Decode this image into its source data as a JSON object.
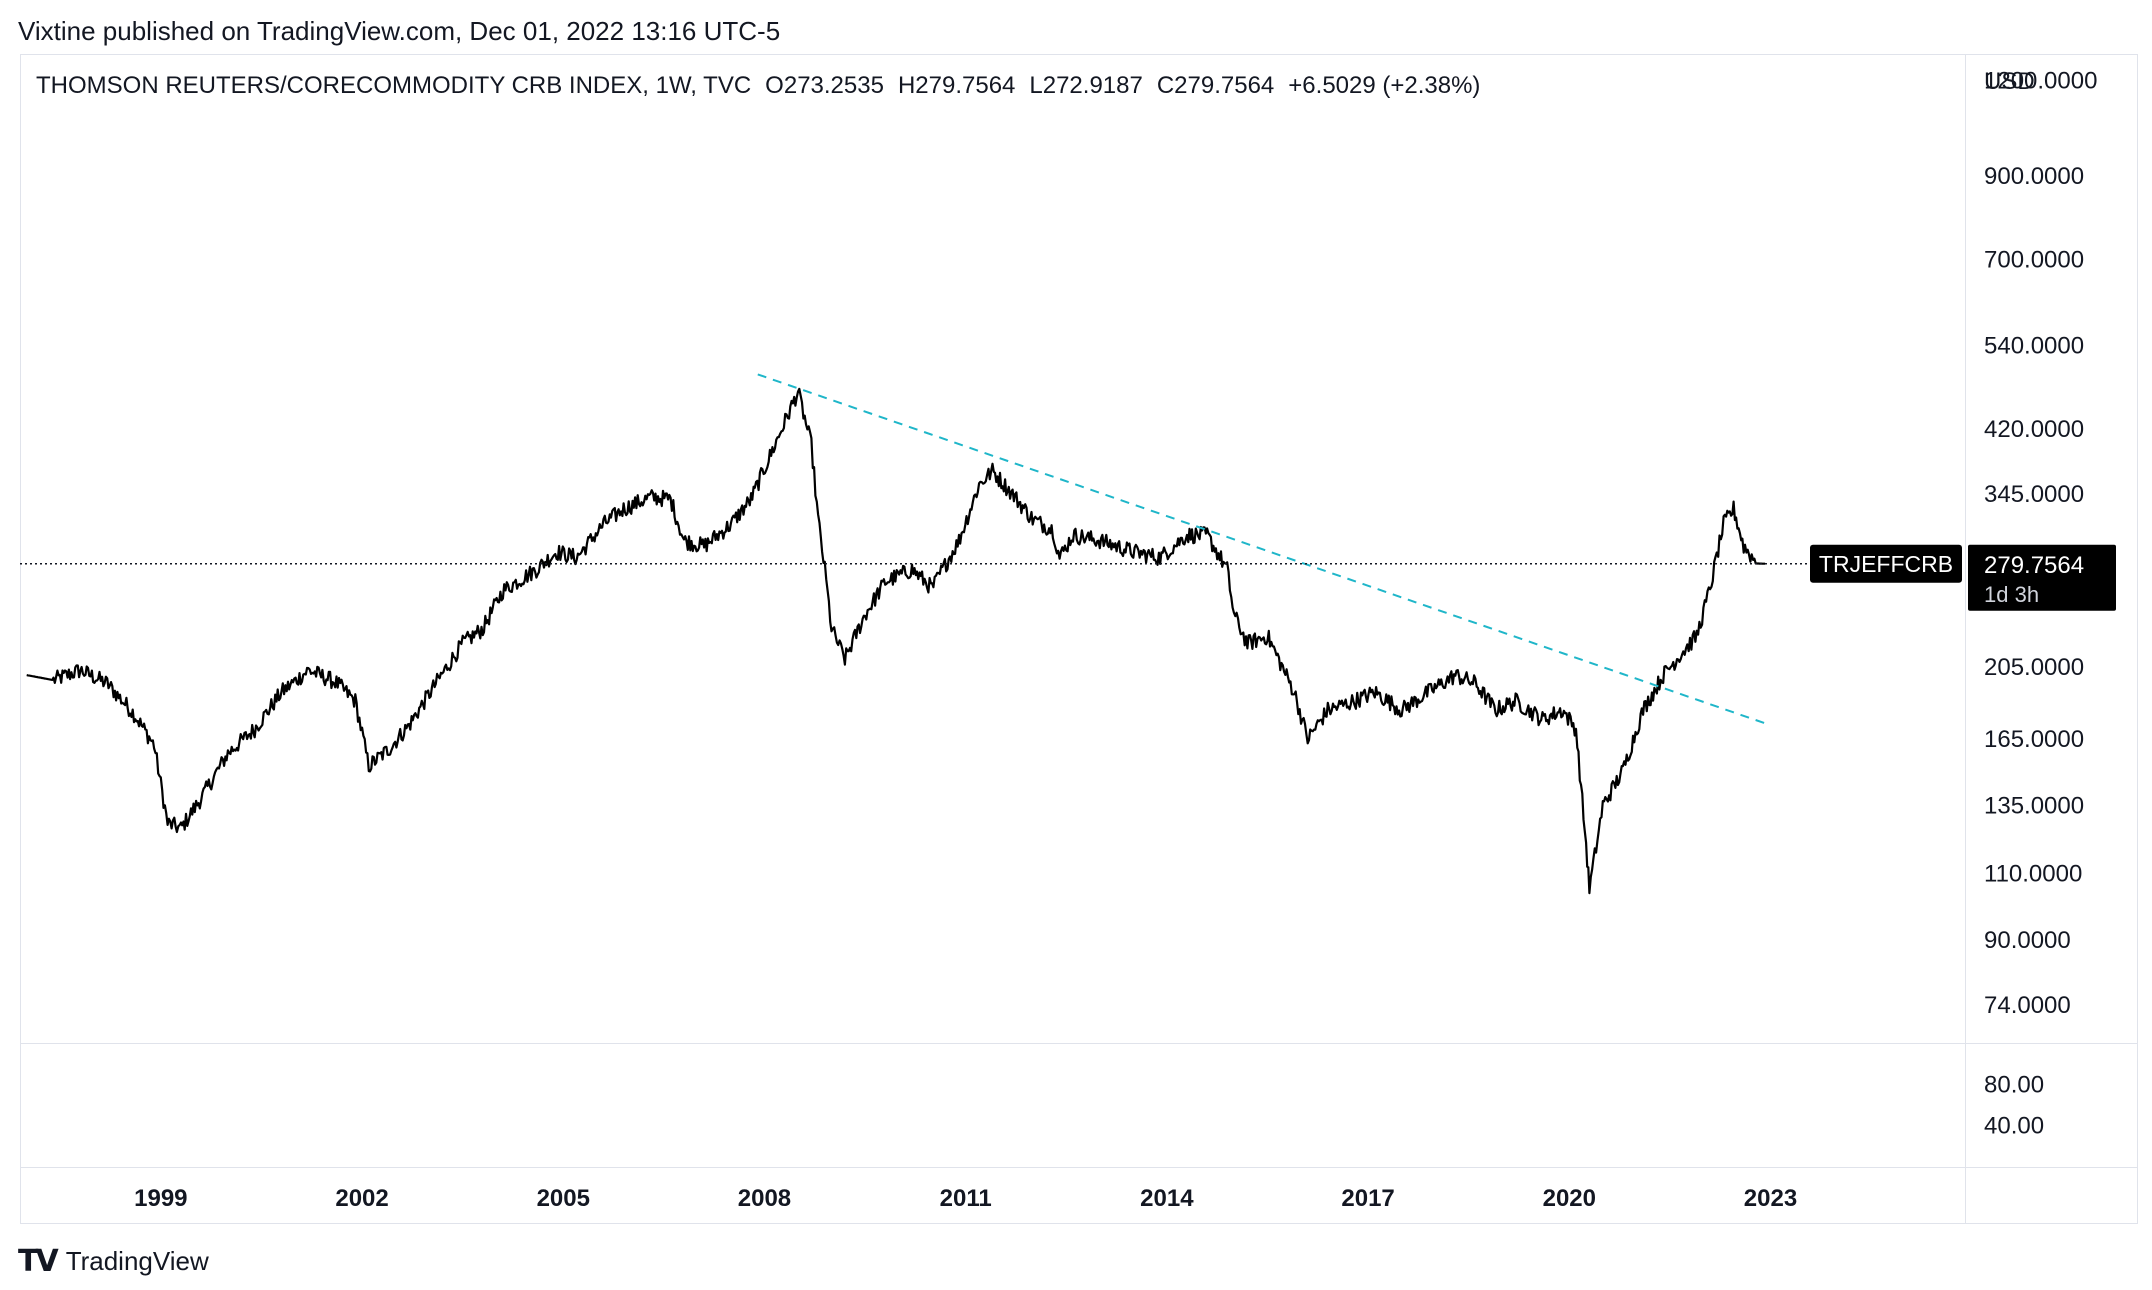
{
  "header": {
    "published_line": "Vixtine published on TradingView.com, Dec 01, 2022 13:16 UTC-5"
  },
  "legend": {
    "symbol": "THOMSON REUTERS/CORECOMMODITY CRB INDEX, 1W, TVC",
    "open": "O273.2535",
    "high": "H279.7564",
    "low": "L272.9187",
    "close": "C279.7564",
    "change": "+6.5029 (+2.38%)"
  },
  "price_axis": {
    "currency": "USD",
    "ticks": [
      "1200.0000",
      "900.0000",
      "700.0000",
      "540.0000",
      "420.0000",
      "345.0000",
      "205.0000",
      "165.0000",
      "135.0000",
      "110.0000",
      "90.0000",
      "74.0000"
    ],
    "current_label": "TRJEFFCRB",
    "current_value": "279.7564",
    "countdown": "1d 3h"
  },
  "lower_pane": {
    "ticks": [
      "80.00",
      "40.00"
    ]
  },
  "time_axis": {
    "ticks": [
      "1999",
      "2002",
      "2005",
      "2008",
      "2011",
      "2014",
      "2017",
      "2020",
      "2023"
    ]
  },
  "footer": {
    "brand": "TradingView"
  },
  "colors": {
    "price_line": "#000000",
    "trend_line": "#1fb6c9",
    "axis_text": "#131722",
    "grid": "#e0e3eb"
  },
  "chart_data": {
    "type": "line",
    "title": "THOMSON REUTERS/CORECOMMODITY CRB INDEX, 1W, TVC",
    "y_scale": "log",
    "ylim": [
      66,
      1300
    ],
    "xlim": [
      1996.9,
      2025.9
    ],
    "current_price": 279.7564,
    "series": [
      {
        "values": [
          [
            1997.0,
            200
          ],
          [
            1997.4,
            197
          ],
          [
            1997.8,
            203
          ],
          [
            1998.2,
            195
          ],
          [
            1998.6,
            178
          ],
          [
            1998.9,
            162
          ],
          [
            1999.1,
            128
          ],
          [
            1999.3,
            126
          ],
          [
            1999.6,
            138
          ],
          [
            2000.0,
            158
          ],
          [
            2000.4,
            170
          ],
          [
            2000.8,
            190
          ],
          [
            2001.2,
            203
          ],
          [
            2001.6,
            196
          ],
          [
            2001.9,
            185
          ],
          [
            2002.0,
            168
          ],
          [
            2002.1,
            152
          ],
          [
            2002.4,
            160
          ],
          [
            2002.7,
            172
          ],
          [
            2003.1,
            195
          ],
          [
            2003.5,
            220
          ],
          [
            2003.8,
            230
          ],
          [
            2004.1,
            258
          ],
          [
            2004.6,
            275
          ],
          [
            2004.9,
            290
          ],
          [
            2005.2,
            285
          ],
          [
            2005.6,
            315
          ],
          [
            2005.9,
            330
          ],
          [
            2006.3,
            342
          ],
          [
            2006.6,
            340
          ],
          [
            2006.8,
            300
          ],
          [
            2007.1,
            295
          ],
          [
            2007.5,
            315
          ],
          [
            2007.8,
            340
          ],
          [
            2008.1,
            390
          ],
          [
            2008.5,
            470
          ],
          [
            2008.7,
            400
          ],
          [
            2008.8,
            320
          ],
          [
            2008.9,
            275
          ],
          [
            2009.0,
            230
          ],
          [
            2009.2,
            210
          ],
          [
            2009.5,
            240
          ],
          [
            2009.8,
            265
          ],
          [
            2010.2,
            275
          ],
          [
            2010.5,
            260
          ],
          [
            2010.9,
            300
          ],
          [
            2011.2,
            355
          ],
          [
            2011.4,
            370
          ],
          [
            2011.7,
            345
          ],
          [
            2012.0,
            320
          ],
          [
            2012.3,
            310
          ],
          [
            2012.4,
            285
          ],
          [
            2012.6,
            305
          ],
          [
            2013.0,
            300
          ],
          [
            2013.5,
            290
          ],
          [
            2013.9,
            285
          ],
          [
            2014.3,
            305
          ],
          [
            2014.6,
            305
          ],
          [
            2014.9,
            275
          ],
          [
            2015.0,
            240
          ],
          [
            2015.2,
            220
          ],
          [
            2015.5,
            225
          ],
          [
            2015.9,
            190
          ],
          [
            2016.1,
            165
          ],
          [
            2016.4,
            180
          ],
          [
            2016.8,
            185
          ],
          [
            2017.1,
            190
          ],
          [
            2017.5,
            180
          ],
          [
            2017.9,
            190
          ],
          [
            2018.3,
            200
          ],
          [
            2018.6,
            195
          ],
          [
            2018.9,
            180
          ],
          [
            2019.2,
            185
          ],
          [
            2019.6,
            175
          ],
          [
            2019.9,
            180
          ],
          [
            2020.1,
            170
          ],
          [
            2020.25,
            120
          ],
          [
            2020.3,
            105
          ],
          [
            2020.5,
            135
          ],
          [
            2020.8,
            150
          ],
          [
            2021.1,
            180
          ],
          [
            2021.4,
            200
          ],
          [
            2021.7,
            215
          ],
          [
            2021.9,
            225
          ],
          [
            2022.1,
            260
          ],
          [
            2022.3,
            315
          ],
          [
            2022.45,
            330
          ],
          [
            2022.6,
            295
          ],
          [
            2022.8,
            280
          ],
          [
            2022.92,
            279.76
          ]
        ]
      }
    ],
    "trend_line": {
      "style": "dashed",
      "from": [
        2007.9,
        495
      ],
      "to": [
        2023.0,
        172
      ]
    }
  }
}
